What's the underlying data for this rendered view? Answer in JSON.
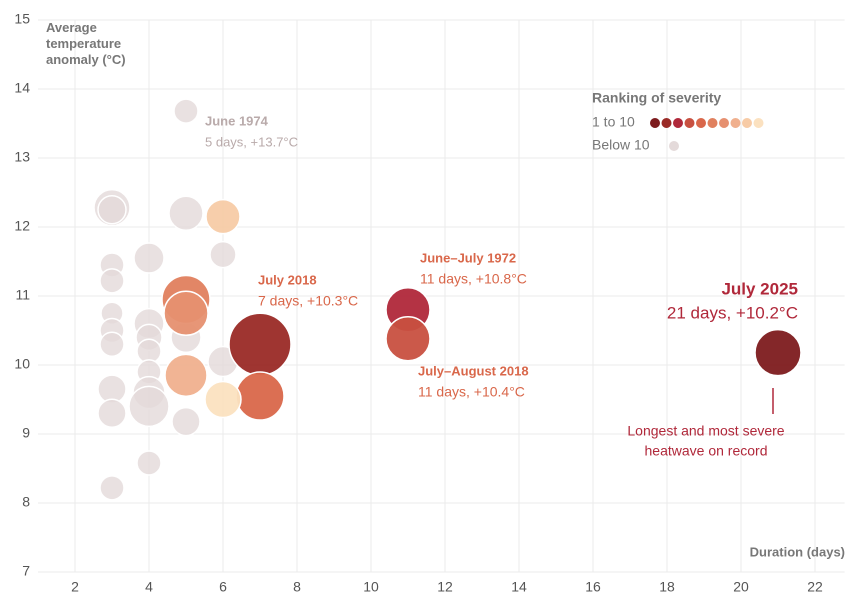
{
  "chart_data": {
    "type": "bubble",
    "x_label": "Duration (days)",
    "y_label": "Average temperature anomaly (°C)",
    "xlim": [
      1,
      22.8
    ],
    "ylim": [
      7,
      15
    ],
    "xticks": [
      2,
      4,
      6,
      8,
      10,
      12,
      14,
      16,
      18,
      20,
      22
    ],
    "yticks": [
      7,
      8,
      9,
      10,
      11,
      12,
      13,
      14,
      15
    ],
    "grid": true,
    "legend": {
      "title": "Ranking of severity"
    },
    "series": [
      {
        "name": "Below 10",
        "color": "#e4dada",
        "x": [
          3,
          3,
          3,
          3,
          3,
          3,
          3,
          3,
          3,
          3,
          4,
          4,
          4,
          4,
          4,
          4,
          4,
          4,
          5,
          5,
          5,
          5,
          6,
          6
        ],
        "y": [
          12.28,
          12.25,
          11.45,
          11.22,
          10.75,
          10.5,
          10.3,
          9.65,
          9.3,
          8.22,
          11.55,
          10.6,
          10.4,
          10.2,
          9.9,
          9.6,
          9.4,
          8.58,
          13.68,
          12.2,
          10.4,
          9.18,
          11.6,
          10.05
        ],
        "sizes": [
          18,
          14,
          12,
          12,
          11,
          12,
          12,
          14,
          14,
          12,
          15,
          15,
          13,
          12,
          12,
          16,
          20,
          12,
          12,
          17,
          15,
          14,
          13,
          15
        ]
      },
      {
        "name": "1 to 10",
        "colors": [
          "#7d1b1e",
          "#9a2a26",
          "#b0283a",
          "#c85040",
          "#d9674a",
          "#e0805e",
          "#e69070",
          "#f0b08e",
          "#f7cba6",
          "#fbe1c0"
        ],
        "x": [
          21,
          7,
          11,
          11,
          7,
          5,
          5,
          5,
          6,
          6
        ],
        "y": [
          10.18,
          10.3,
          10.8,
          10.38,
          9.55,
          10.95,
          10.75,
          9.85,
          12.15,
          9.5
        ],
        "sizes": [
          23,
          31,
          22,
          22,
          24,
          24,
          22,
          21,
          17,
          18
        ]
      }
    ],
    "annotations": [
      {
        "title": "June 1974",
        "text": "5 days, +13.7°C",
        "color": "#b9aaaa"
      },
      {
        "title": "July 2018",
        "text": "7 days, +10.3°C",
        "color": "#d9674a"
      },
      {
        "title": "June–July 1972",
        "text": "11 days, +10.8°C",
        "color": "#d9674a"
      },
      {
        "title": "July–August 2018",
        "text": "11 days, +10.4°C",
        "color": "#d9674a"
      },
      {
        "title": "July 2025",
        "text": "21 days, +10.2°C",
        "color": "#b0283a"
      }
    ],
    "note": {
      "lines": [
        "Longest and most severe",
        "heatwave on record"
      ],
      "color": "#b0283a"
    }
  }
}
